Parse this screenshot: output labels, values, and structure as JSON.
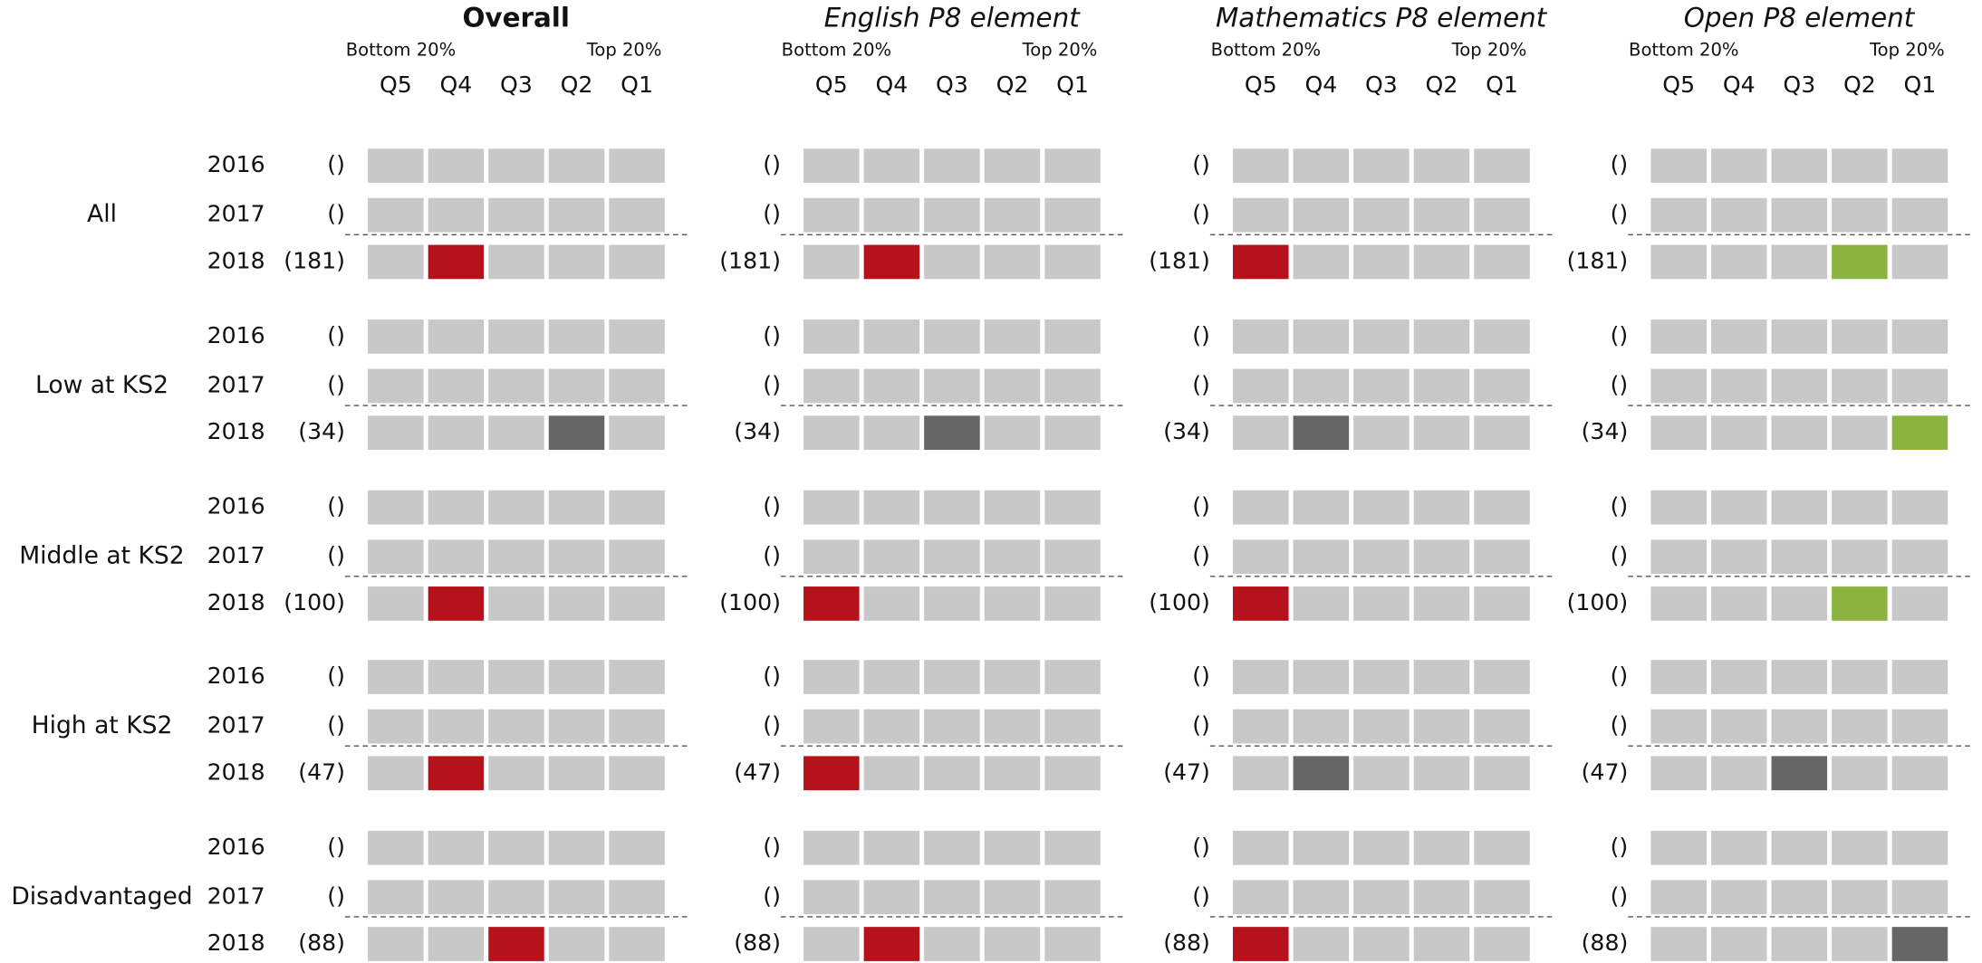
{
  "groups": [
    {
      "label": "All",
      "years": [
        "2016",
        "2017",
        "2018"
      ]
    },
    {
      "label": "Low at KS2",
      "years": [
        "2016",
        "2017",
        "2018"
      ]
    },
    {
      "label": "Middle at KS2",
      "years": [
        "2016",
        "2017",
        "2018"
      ]
    },
    {
      "label": "High at KS2",
      "years": [
        "2016",
        "2017",
        "2018"
      ]
    },
    {
      "label": "Disadvantaged",
      "years": [
        "2016",
        "2017",
        "2018"
      ]
    }
  ],
  "empty_color": "#c8c8c8",
  "panels": [
    {
      "title": "Overall",
      "bold": true,
      "bottom": "Bottom 20%",
      "top": "Top 20%",
      "quintiles": [
        "Q5",
        "Q4",
        "Q3",
        "Q2",
        "Q1"
      ],
      "rows": [
        [
          {
            "count": "()"
          },
          {
            "count": "()"
          },
          {
            "count": "(181)",
            "highlight": "Q4",
            "color": "#b5121b"
          }
        ],
        [
          {
            "count": "()"
          },
          {
            "count": "()"
          },
          {
            "count": "(34)",
            "highlight": "Q2",
            "color": "#666666"
          }
        ],
        [
          {
            "count": "()"
          },
          {
            "count": "()"
          },
          {
            "count": "(100)",
            "highlight": "Q4",
            "color": "#b5121b"
          }
        ],
        [
          {
            "count": "()"
          },
          {
            "count": "()"
          },
          {
            "count": "(47)",
            "highlight": "Q4",
            "color": "#b5121b"
          }
        ],
        [
          {
            "count": "()"
          },
          {
            "count": "()"
          },
          {
            "count": "(88)",
            "highlight": "Q3",
            "color": "#b5121b"
          }
        ]
      ]
    },
    {
      "title": "English P8 element",
      "bold": false,
      "bottom": "Bottom 20%",
      "top": "Top 20%",
      "quintiles": [
        "Q5",
        "Q4",
        "Q3",
        "Q2",
        "Q1"
      ],
      "rows": [
        [
          {
            "count": "()"
          },
          {
            "count": "()"
          },
          {
            "count": "(181)",
            "highlight": "Q4",
            "color": "#b5121b"
          }
        ],
        [
          {
            "count": "()"
          },
          {
            "count": "()"
          },
          {
            "count": "(34)",
            "highlight": "Q3",
            "color": "#666666"
          }
        ],
        [
          {
            "count": "()"
          },
          {
            "count": "()"
          },
          {
            "count": "(100)",
            "highlight": "Q5",
            "color": "#b5121b"
          }
        ],
        [
          {
            "count": "()"
          },
          {
            "count": "()"
          },
          {
            "count": "(47)",
            "highlight": "Q5",
            "color": "#b5121b"
          }
        ],
        [
          {
            "count": "()"
          },
          {
            "count": "()"
          },
          {
            "count": "(88)",
            "highlight": "Q4",
            "color": "#b5121b"
          }
        ]
      ]
    },
    {
      "title": "Mathematics P8 element",
      "bold": false,
      "bottom": "Bottom 20%",
      "top": "Top 20%",
      "quintiles": [
        "Q5",
        "Q4",
        "Q3",
        "Q2",
        "Q1"
      ],
      "rows": [
        [
          {
            "count": "()"
          },
          {
            "count": "()"
          },
          {
            "count": "(181)",
            "highlight": "Q5",
            "color": "#b5121b"
          }
        ],
        [
          {
            "count": "()"
          },
          {
            "count": "()"
          },
          {
            "count": "(34)",
            "highlight": "Q4",
            "color": "#666666"
          }
        ],
        [
          {
            "count": "()"
          },
          {
            "count": "()"
          },
          {
            "count": "(100)",
            "highlight": "Q5",
            "color": "#b5121b"
          }
        ],
        [
          {
            "count": "()"
          },
          {
            "count": "()"
          },
          {
            "count": "(47)",
            "highlight": "Q4",
            "color": "#666666"
          }
        ],
        [
          {
            "count": "()"
          },
          {
            "count": "()"
          },
          {
            "count": "(88)",
            "highlight": "Q5",
            "color": "#b5121b"
          }
        ]
      ]
    },
    {
      "title": "Open P8 element",
      "bold": false,
      "bottom": "Bottom 20%",
      "top": "Top 20%",
      "quintiles": [
        "Q5",
        "Q4",
        "Q3",
        "Q2",
        "Q1"
      ],
      "rows": [
        [
          {
            "count": "()"
          },
          {
            "count": "()"
          },
          {
            "count": "(181)",
            "highlight": "Q2",
            "color": "#8ab43f"
          }
        ],
        [
          {
            "count": "()"
          },
          {
            "count": "()"
          },
          {
            "count": "(34)",
            "highlight": "Q1",
            "color": "#8ab43f"
          }
        ],
        [
          {
            "count": "()"
          },
          {
            "count": "()"
          },
          {
            "count": "(100)",
            "highlight": "Q2",
            "color": "#8ab43f"
          }
        ],
        [
          {
            "count": "()"
          },
          {
            "count": "()"
          },
          {
            "count": "(47)",
            "highlight": "Q3",
            "color": "#666666"
          }
        ],
        [
          {
            "count": "()"
          },
          {
            "count": "()"
          },
          {
            "count": "(88)",
            "highlight": "Q1",
            "color": "#666666"
          }
        ]
      ]
    }
  ]
}
